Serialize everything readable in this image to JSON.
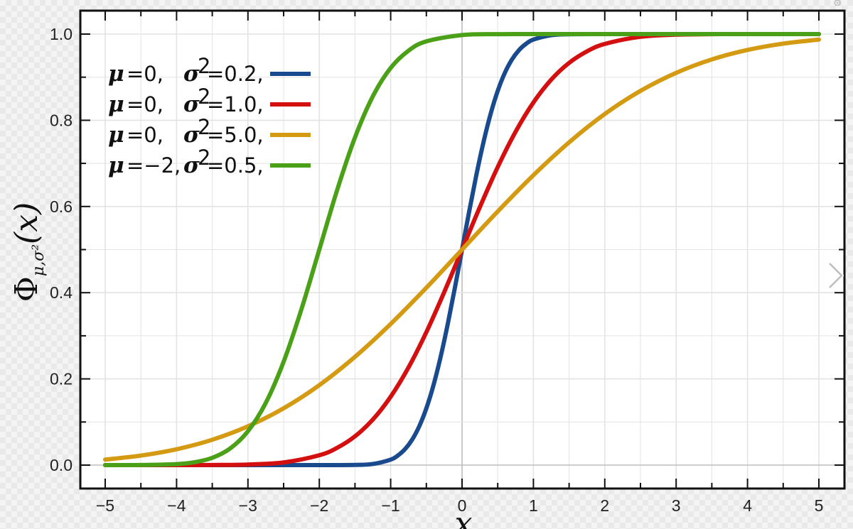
{
  "chart_data": {
    "type": "line",
    "title": "",
    "xlabel": "x",
    "ylabel": "Φμ,σ²(x)",
    "ylabel_main": "Φ",
    "ylabel_sub": "μ,σ²",
    "ylabel_arg": "(x)",
    "xlim": [
      -5,
      5
    ],
    "ylim": [
      0,
      1
    ],
    "x_ticks": [
      -5,
      -4,
      -3,
      -2,
      -1,
      0,
      1,
      2,
      3,
      4,
      5
    ],
    "x_tick_labels": [
      "−5",
      "−4",
      "−3",
      "−2",
      "−1",
      "0",
      "1",
      "2",
      "3",
      "4",
      "5"
    ],
    "y_ticks": [
      0,
      0.2,
      0.4,
      0.6,
      0.8,
      1.0
    ],
    "y_tick_labels": [
      "0.0",
      "0.2",
      "0.4",
      "0.6",
      "0.8",
      "1.0"
    ],
    "grid": true,
    "legend_position": "top-left",
    "series": [
      {
        "name": "μ=0, σ²=0.2,",
        "mu_text": "=0,",
        "sigma_text": "=0.2,",
        "mu": 0,
        "sigma2": 0.2,
        "color": "#1a4a8e",
        "x": [
          -5,
          -4,
          -3,
          -2,
          -1.5,
          -1.25,
          -1,
          -0.9,
          -0.8,
          -0.7,
          -0.6,
          -0.5,
          -0.4,
          -0.3,
          -0.2,
          -0.1,
          0,
          0.1,
          0.2,
          0.3,
          0.4,
          0.5,
          0.6,
          0.7,
          0.8,
          0.9,
          1,
          1.25,
          1.5,
          2,
          3,
          4,
          5
        ],
        "y": [
          0,
          0,
          0,
          0,
          0.0004,
          0.0026,
          0.0127,
          0.0222,
          0.0368,
          0.0588,
          0.0899,
          0.1318,
          0.1855,
          0.2512,
          0.3274,
          0.4115,
          0.5,
          0.5885,
          0.6726,
          0.7488,
          0.8145,
          0.8682,
          0.9101,
          0.9412,
          0.9632,
          0.9778,
          0.9873,
          0.9974,
          0.9996,
          1,
          1,
          1,
          1
        ]
      },
      {
        "name": "μ=0, σ²=1.0,",
        "mu_text": "=0,",
        "sigma_text": "=1.0,",
        "mu": 0,
        "sigma2": 1.0,
        "color": "#d40f0f",
        "x": [
          -5,
          -4.5,
          -4,
          -3.5,
          -3,
          -2.5,
          -2,
          -1.75,
          -1.5,
          -1.25,
          -1,
          -0.75,
          -0.5,
          -0.25,
          0,
          0.25,
          0.5,
          0.75,
          1,
          1.25,
          1.5,
          1.75,
          2,
          2.5,
          3,
          3.5,
          4,
          4.5,
          5
        ],
        "y": [
          0,
          0,
          0,
          0.0002,
          0.0013,
          0.0062,
          0.0228,
          0.0401,
          0.0668,
          0.1056,
          0.1587,
          0.2266,
          0.3085,
          0.4013,
          0.5,
          0.5987,
          0.6915,
          0.7734,
          0.8413,
          0.8944,
          0.9332,
          0.9599,
          0.9772,
          0.9938,
          0.9987,
          0.9998,
          1,
          1,
          1
        ]
      },
      {
        "name": "μ=0, σ²=5.0,",
        "mu_text": "=0,",
        "sigma_text": "=5.0,",
        "mu": 0,
        "sigma2": 5.0,
        "color": "#d49a12",
        "x": [
          -5,
          -4.5,
          -4,
          -3.5,
          -3,
          -2.5,
          -2,
          -1.5,
          -1,
          -0.5,
          0,
          0.5,
          1,
          1.5,
          2,
          2.5,
          3,
          3.5,
          4,
          4.5,
          5
        ],
        "y": [
          0.0127,
          0.0221,
          0.0368,
          0.0588,
          0.0899,
          0.1318,
          0.1855,
          0.2512,
          0.3274,
          0.4115,
          0.5,
          0.5885,
          0.6726,
          0.7488,
          0.8145,
          0.8682,
          0.9101,
          0.9412,
          0.9632,
          0.9779,
          0.9873
        ]
      },
      {
        "name": "μ=−2, σ²=0.5,",
        "mu_text": "=−2,",
        "sigma_text": "=0.5,",
        "mu": -2,
        "sigma2": 0.5,
        "color": "#4aa016",
        "x": [
          -5,
          -4.5,
          -4,
          -3.75,
          -3.5,
          -3.25,
          -3,
          -2.75,
          -2.5,
          -2.25,
          -2,
          -1.75,
          -1.5,
          -1.25,
          -1,
          -0.75,
          -0.5,
          0,
          0.5,
          1,
          2,
          3,
          4,
          5
        ],
        "y": [
          0,
          0.0002,
          0.0023,
          0.0067,
          0.0169,
          0.0385,
          0.0786,
          0.1444,
          0.2398,
          0.3618,
          0.5,
          0.6382,
          0.7602,
          0.8556,
          0.9214,
          0.9615,
          0.9831,
          0.9977,
          0.9998,
          1,
          1,
          1,
          1,
          1
        ]
      }
    ]
  },
  "viewer": {
    "next_icon": "chevron-right-icon",
    "settings_icon": "gear-icon",
    "settings_glyph": "⚙"
  }
}
